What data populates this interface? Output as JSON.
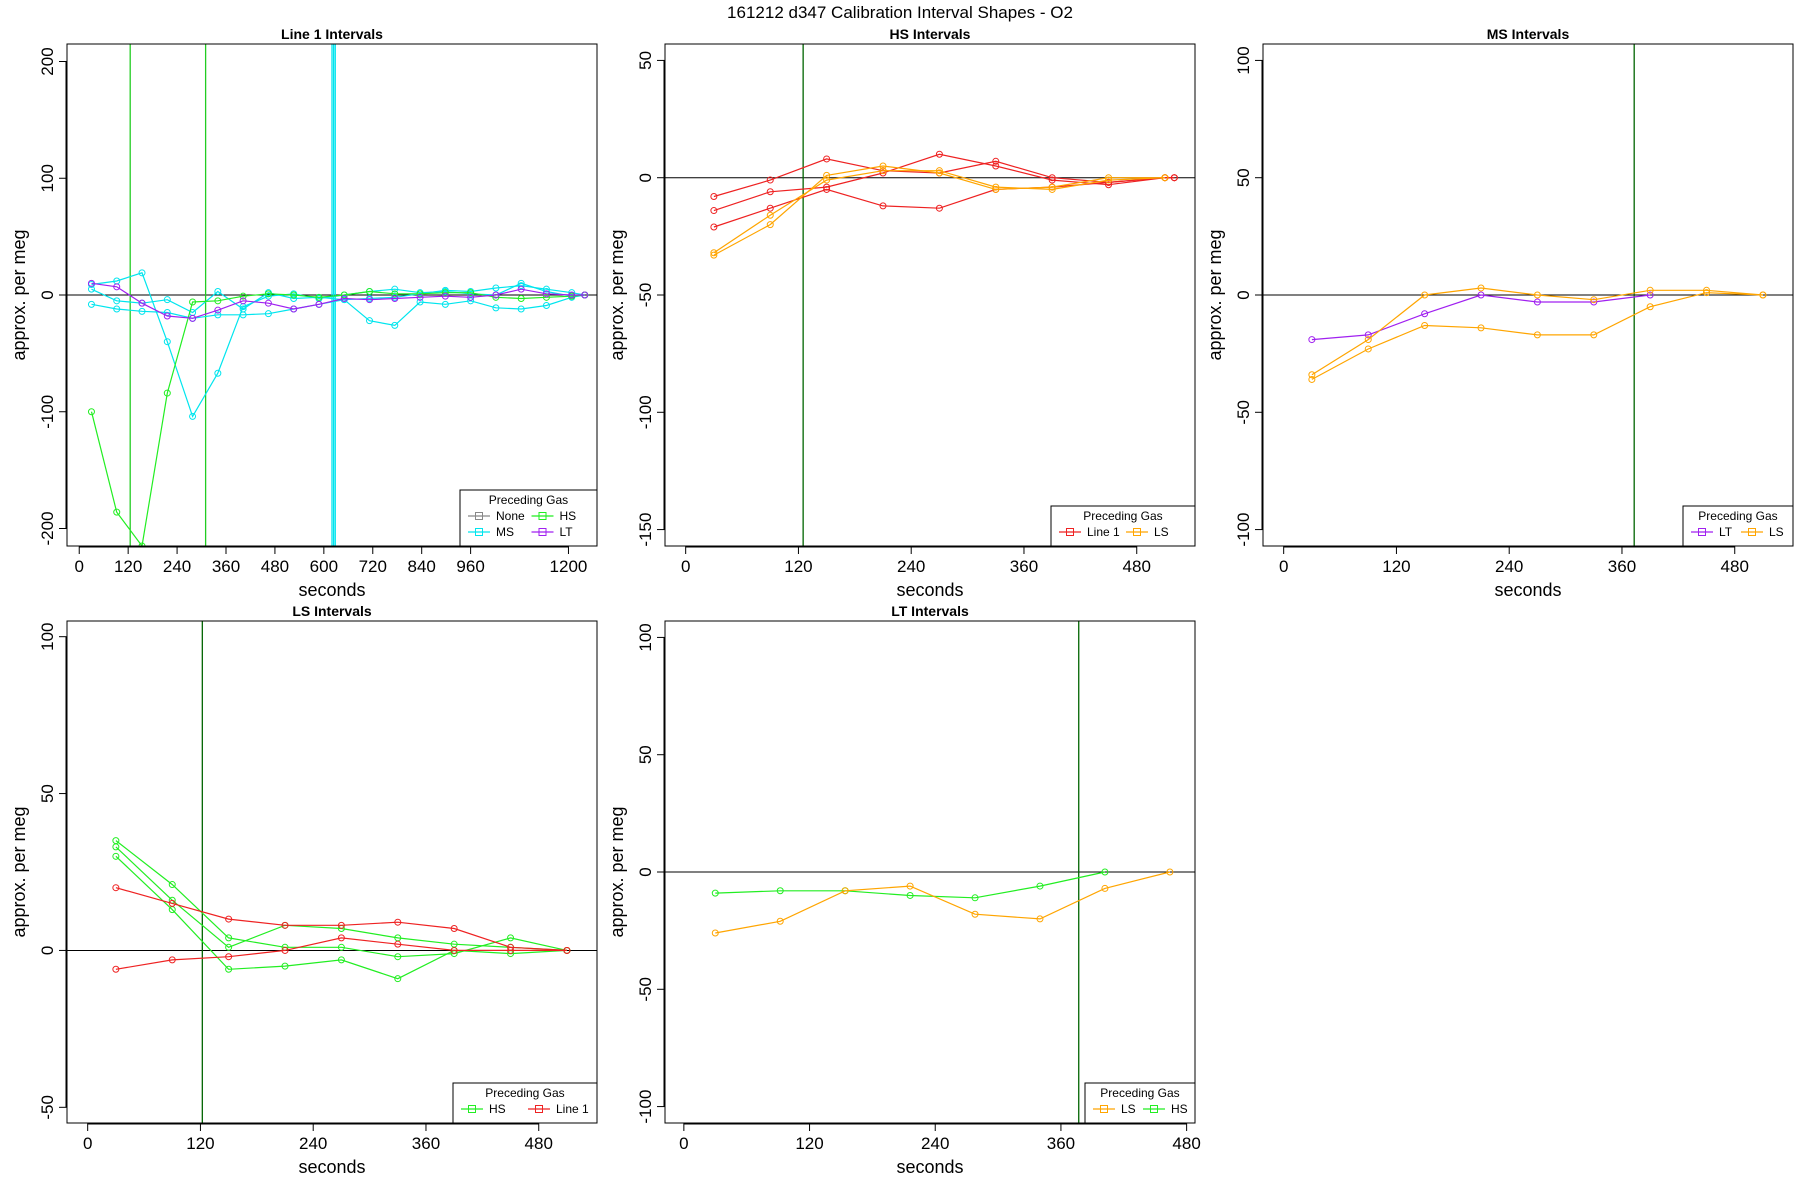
{
  "suptitle": "161212   d347   Calibration Interval Shapes - O2",
  "colors": {
    "None": "#888888",
    "MS": "#00e5ee",
    "HS": "#22ee22",
    "LT": "#a020f0",
    "Line 1": "#ee2222",
    "LS": "#ffa500",
    "vline": "#006400",
    "frame": "#000000"
  },
  "chart_data": [
    {
      "type": "line",
      "title": "Line 1 Intervals",
      "xlabel": "seconds",
      "ylabel": "approx. per meg",
      "xlim": [
        -30,
        1270
      ],
      "ylim": [
        -215,
        215
      ],
      "xticks": [
        0,
        120,
        240,
        360,
        480,
        600,
        720,
        840,
        960,
        1200
      ],
      "yticks": [
        -200,
        -100,
        0,
        100,
        200
      ],
      "hline": 0,
      "vlines": [
        {
          "x": 125,
          "color": "HS"
        },
        {
          "x": 310,
          "color": "HS"
        },
        {
          "x": 620,
          "color": "MS"
        },
        {
          "x": 624,
          "color": "MS"
        },
        {
          "x": 628,
          "color": "MS"
        }
      ],
      "legend": {
        "title": "Preceding Gas",
        "entries": [
          "None",
          "HS",
          "MS",
          "LT"
        ],
        "columns": 2
      },
      "series": [
        {
          "gas": "MS",
          "x": [
            30,
            92,
            154,
            216,
            278,
            340,
            402,
            464,
            526,
            588,
            650,
            712,
            774,
            836,
            898,
            960,
            1022,
            1084,
            1146,
            1208,
            1240
          ],
          "y": [
            5,
            -5,
            -7,
            -4,
            -15,
            3,
            -12,
            2,
            -3,
            -2,
            -4,
            -22,
            -26,
            -6,
            -8,
            -5,
            -11,
            -12,
            -9,
            -2,
            0
          ]
        },
        {
          "gas": "MS",
          "x": [
            30,
            92,
            154,
            216,
            278,
            340,
            402,
            464,
            526,
            588,
            650,
            712,
            774,
            836,
            898,
            960,
            1022,
            1084,
            1146,
            1208,
            1240
          ],
          "y": [
            -8,
            -12,
            -14,
            -15,
            -20,
            -17,
            -17,
            -16,
            -12,
            -8,
            -4,
            -3,
            -2,
            1,
            4,
            3,
            6,
            8,
            5,
            2,
            0
          ]
        },
        {
          "gas": "MS",
          "x": [
            30,
            92,
            154,
            216,
            278,
            340,
            402,
            464,
            526,
            588,
            650,
            712,
            774,
            836,
            898,
            960,
            1022,
            1084,
            1146,
            1208,
            1240
          ],
          "y": [
            9,
            12,
            19,
            -40,
            -104,
            -67,
            -10,
            -1,
            1,
            -3,
            0,
            3,
            5,
            2,
            3,
            1,
            0,
            10,
            3,
            -1,
            0
          ]
        },
        {
          "gas": "HS",
          "x": [
            30,
            92,
            154,
            216,
            278,
            340,
            402,
            464,
            526,
            588,
            650,
            712,
            774,
            836,
            898,
            960,
            1022,
            1084,
            1146,
            1208,
            1240
          ],
          "y": [
            -100,
            -186,
            -215,
            -84,
            -6,
            -5,
            -1,
            1,
            0,
            -2,
            0,
            3,
            1,
            1,
            2,
            2,
            -2,
            -3,
            -2,
            -1,
            0
          ]
        },
        {
          "gas": "LT",
          "x": [
            30,
            92,
            154,
            216,
            278,
            340,
            402,
            464,
            526,
            588,
            650,
            712,
            774,
            836,
            898,
            960,
            1022,
            1084,
            1146,
            1208,
            1240
          ],
          "y": [
            10,
            7,
            -7,
            -18,
            -20,
            -13,
            -5,
            -7,
            -12,
            -8,
            -3,
            -4,
            -3,
            -2,
            -1,
            -2,
            0,
            5,
            1,
            0,
            0
          ]
        }
      ]
    },
    {
      "type": "line",
      "title": "HS Intervals",
      "xlabel": "seconds",
      "ylabel": "approx. per meg",
      "xlim": [
        -22,
        542
      ],
      "ylim": [
        -157,
        57
      ],
      "xticks": [
        0,
        120,
        240,
        360,
        480
      ],
      "yticks": [
        -150,
        -100,
        -50,
        0,
        50
      ],
      "hline": 0,
      "vlines": [
        {
          "x": 125,
          "color": "vline"
        }
      ],
      "legend": {
        "title": "Preceding Gas",
        "entries": [
          "Line 1",
          "LS"
        ],
        "columns": 2
      },
      "series": [
        {
          "gas": "Line 1",
          "x": [
            30,
            90,
            150,
            210,
            270,
            330,
            390,
            450,
            510,
            520
          ],
          "y": [
            -8,
            -1,
            8,
            3,
            2,
            7,
            0,
            -2,
            0,
            0
          ]
        },
        {
          "gas": "Line 1",
          "x": [
            30,
            90,
            150,
            210,
            270,
            330,
            390,
            450,
            510,
            520
          ],
          "y": [
            -14,
            -6,
            -4,
            2,
            10,
            5,
            -1,
            -3,
            0,
            0
          ]
        },
        {
          "gas": "Line 1",
          "x": [
            30,
            90,
            150,
            210,
            270,
            330,
            390,
            450,
            510,
            520
          ],
          "y": [
            -21,
            -13,
            -5,
            -12,
            -13,
            -5,
            -4,
            -2,
            0,
            0
          ]
        },
        {
          "gas": "LS",
          "x": [
            30,
            90,
            150,
            210,
            270,
            330,
            390,
            450,
            510
          ],
          "y": [
            -33,
            -20,
            1,
            5,
            2,
            -5,
            -4,
            0,
            0
          ]
        },
        {
          "gas": "LS",
          "x": [
            30,
            90,
            150,
            210,
            270,
            330,
            390,
            450,
            510
          ],
          "y": [
            -32,
            -16,
            -1,
            3,
            3,
            -4,
            -5,
            -1,
            0
          ]
        }
      ]
    },
    {
      "type": "line",
      "title": "MS Intervals",
      "xlabel": "seconds",
      "ylabel": "approx. per meg",
      "xlim": [
        -22,
        542
      ],
      "ylim": [
        -107,
        107
      ],
      "xticks": [
        0,
        120,
        240,
        360,
        480
      ],
      "yticks": [
        -100,
        -50,
        0,
        50,
        100
      ],
      "hline": 0,
      "vlines": [
        {
          "x": 373,
          "color": "vline"
        }
      ],
      "legend": {
        "title": "Preceding Gas",
        "entries": [
          "LT",
          "LS"
        ],
        "columns": 2
      },
      "series": [
        {
          "gas": "LT",
          "x": [
            30,
            90,
            150,
            210,
            270,
            330,
            390
          ],
          "y": [
            -19,
            -17,
            -8,
            0,
            -3,
            -3,
            0
          ]
        },
        {
          "gas": "LS",
          "x": [
            30,
            90,
            150,
            210,
            270,
            330,
            390,
            450,
            510
          ],
          "y": [
            -34,
            -19,
            0,
            3,
            0,
            -2,
            2,
            2,
            0
          ]
        },
        {
          "gas": "LS",
          "x": [
            30,
            90,
            150,
            210,
            270,
            330,
            390,
            450,
            510
          ],
          "y": [
            -36,
            -23,
            -13,
            -14,
            -17,
            -17,
            -5,
            1,
            0
          ]
        }
      ]
    },
    {
      "type": "line",
      "title": "LS Intervals",
      "xlabel": "seconds",
      "ylabel": "approx. per meg",
      "xlim": [
        -22,
        542
      ],
      "ylim": [
        -55,
        105
      ],
      "xticks": [
        0,
        120,
        240,
        360,
        480
      ],
      "yticks": [
        -50,
        0,
        50,
        100
      ],
      "hline": 0,
      "vlines": [
        {
          "x": 122,
          "color": "vline"
        }
      ],
      "legend": {
        "title": "Preceding Gas",
        "entries": [
          "HS",
          "Line 1"
        ],
        "columns": 2
      },
      "series": [
        {
          "gas": "HS",
          "x": [
            30,
            90,
            150,
            210,
            270,
            330,
            390,
            450,
            510
          ],
          "y": [
            35,
            21,
            4,
            1,
            1,
            -2,
            -1,
            4,
            0
          ]
        },
        {
          "gas": "HS",
          "x": [
            30,
            90,
            150,
            210,
            270,
            330,
            390,
            450,
            510
          ],
          "y": [
            33,
            16,
            1,
            8,
            7,
            4,
            2,
            1,
            0
          ]
        },
        {
          "gas": "HS",
          "x": [
            30,
            90,
            150,
            210,
            270,
            330,
            390,
            450,
            510
          ],
          "y": [
            30,
            13,
            -6,
            -5,
            -3,
            -9,
            0,
            -1,
            0
          ]
        },
        {
          "gas": "Line 1",
          "x": [
            30,
            90,
            150,
            210,
            270,
            330,
            390,
            450,
            510
          ],
          "y": [
            20,
            15,
            10,
            8,
            8,
            9,
            7,
            1,
            0
          ]
        },
        {
          "gas": "Line 1",
          "x": [
            30,
            90,
            150,
            210,
            270,
            330,
            390,
            450,
            510
          ],
          "y": [
            -6,
            -3,
            -2,
            0,
            4,
            2,
            0,
            0,
            0
          ]
        }
      ]
    },
    {
      "type": "line",
      "title": "LT Intervals",
      "xlabel": "seconds",
      "ylabel": "approx. per meg",
      "xlim": [
        -18,
        488
      ],
      "ylim": [
        -107,
        107
      ],
      "xticks": [
        0,
        120,
        240,
        360,
        480
      ],
      "yticks": [
        -100,
        -50,
        0,
        50,
        100
      ],
      "hline": 0,
      "vlines": [
        {
          "x": 377,
          "color": "vline"
        }
      ],
      "legend": {
        "title": "Preceding Gas",
        "entries": [
          "LS",
          "HS"
        ],
        "columns": 2
      },
      "series": [
        {
          "gas": "HS",
          "x": [
            30,
            92,
            154,
            216,
            278,
            340,
            402
          ],
          "y": [
            -9,
            -8,
            -8,
            -10,
            -11,
            -6,
            0
          ]
        },
        {
          "gas": "LS",
          "x": [
            30,
            92,
            154,
            216,
            278,
            340,
            402,
            464
          ],
          "y": [
            -26,
            -21,
            -8,
            -6,
            -18,
            -20,
            -7,
            0
          ]
        }
      ]
    }
  ]
}
